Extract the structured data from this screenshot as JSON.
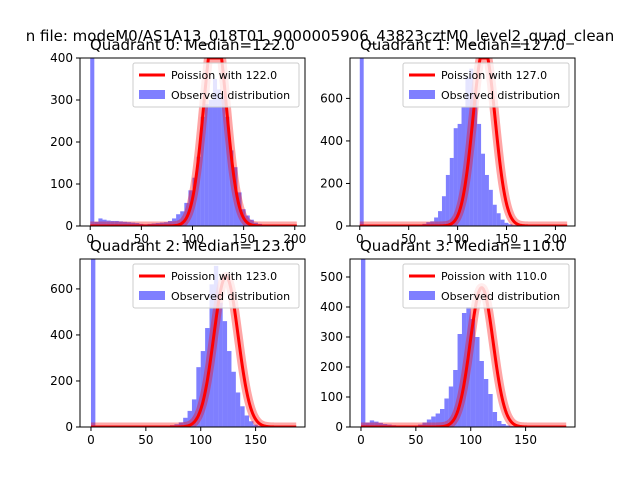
{
  "figure": {
    "suptitle": "n file: modeM0/AS1A13_018T01_9000005906_43823cztM0_level2_quad_clean"
  },
  "colors": {
    "poisson": "#ff0000",
    "histogram": "#0000ff"
  },
  "chart_data": [
    {
      "type": "bar",
      "title": "Quadrant 0: Median=122.0",
      "xlim": [
        -10,
        210
      ],
      "ylim": [
        0,
        400
      ],
      "xticks": [
        0,
        50,
        100,
        150,
        200
      ],
      "yticks": [
        0,
        100,
        200,
        300,
        400
      ],
      "legend": [
        "Poission with 122.0",
        "Observed distribution"
      ],
      "legend_position": "top-right",
      "mean": 122.0,
      "bins": {
        "start": 0,
        "width": 4,
        "values": [
          400,
          10,
          18,
          15,
          13,
          12,
          12,
          11,
          10,
          9,
          8,
          7,
          5,
          4,
          5,
          6,
          7,
          8,
          9,
          12,
          18,
          28,
          35,
          55,
          85,
          115,
          165,
          260,
          290,
          300,
          350,
          325,
          310,
          260,
          180,
          140,
          80,
          40,
          25,
          15,
          8,
          5,
          3,
          2,
          1,
          1,
          0,
          0,
          0,
          0
        ]
      }
    },
    {
      "type": "bar",
      "title": "Quadrant 1: Median=127.0",
      "xlim": [
        -10,
        220
      ],
      "ylim": [
        0,
        790
      ],
      "xticks": [
        0,
        50,
        100,
        150,
        200
      ],
      "yticks": [
        0,
        200,
        400,
        600
      ],
      "legend": [
        "Poission with 127.0",
        "Observed distribution"
      ],
      "legend_position": "top-right",
      "mean": 127.0,
      "bins": {
        "start": 0,
        "width": 4,
        "values": [
          790,
          6,
          5,
          4,
          3,
          3,
          3,
          2,
          2,
          2,
          2,
          3,
          3,
          4,
          5,
          6,
          10,
          18,
          22,
          40,
          70,
          140,
          240,
          320,
          460,
          480,
          560,
          700,
          740,
          620,
          480,
          340,
          240,
          170,
          100,
          60,
          30,
          15,
          8,
          4,
          2,
          1,
          1,
          0,
          0,
          0,
          0,
          0,
          0,
          0,
          0,
          0
        ]
      }
    },
    {
      "type": "bar",
      "title": "Quadrant 2: Median=123.0",
      "xlim": [
        -10,
        195
      ],
      "ylim": [
        0,
        730
      ],
      "xticks": [
        0,
        50,
        100,
        150
      ],
      "yticks": [
        0,
        200,
        400,
        600
      ],
      "legend": [
        "Poission with 123.0",
        "Observed distribution"
      ],
      "legend_position": "top-right",
      "mean": 123.0,
      "bins": {
        "start": 0,
        "width": 4,
        "values": [
          730,
          2,
          2,
          2,
          1,
          1,
          1,
          1,
          1,
          1,
          1,
          1,
          1,
          1,
          2,
          2,
          3,
          5,
          8,
          12,
          20,
          40,
          70,
          120,
          260,
          330,
          430,
          620,
          700,
          540,
          460,
          330,
          240,
          150,
          90,
          50,
          25,
          10,
          5,
          2,
          1,
          1,
          0,
          0,
          0,
          0
        ]
      }
    },
    {
      "type": "bar",
      "title": "Quadrant 3: Median=110.0",
      "xlim": [
        -10,
        195
      ],
      "ylim": [
        0,
        560
      ],
      "xticks": [
        0,
        50,
        100,
        150
      ],
      "yticks": [
        0,
        100,
        200,
        300,
        400,
        500
      ],
      "legend": [
        "Poission with 110.0",
        "Observed distribution"
      ],
      "legend_position": "top-right",
      "mean": 110.0,
      "bins": {
        "start": 0,
        "width": 4,
        "values": [
          560,
          15,
          22,
          18,
          14,
          10,
          8,
          6,
          4,
          4,
          4,
          3,
          4,
          8,
          15,
          25,
          35,
          45,
          60,
          95,
          135,
          190,
          310,
          380,
          400,
          360,
          300,
          220,
          160,
          110,
          50,
          20,
          10,
          5,
          3,
          2,
          1,
          1,
          0,
          0,
          0,
          0,
          0,
          0,
          0,
          0
        ]
      }
    }
  ]
}
